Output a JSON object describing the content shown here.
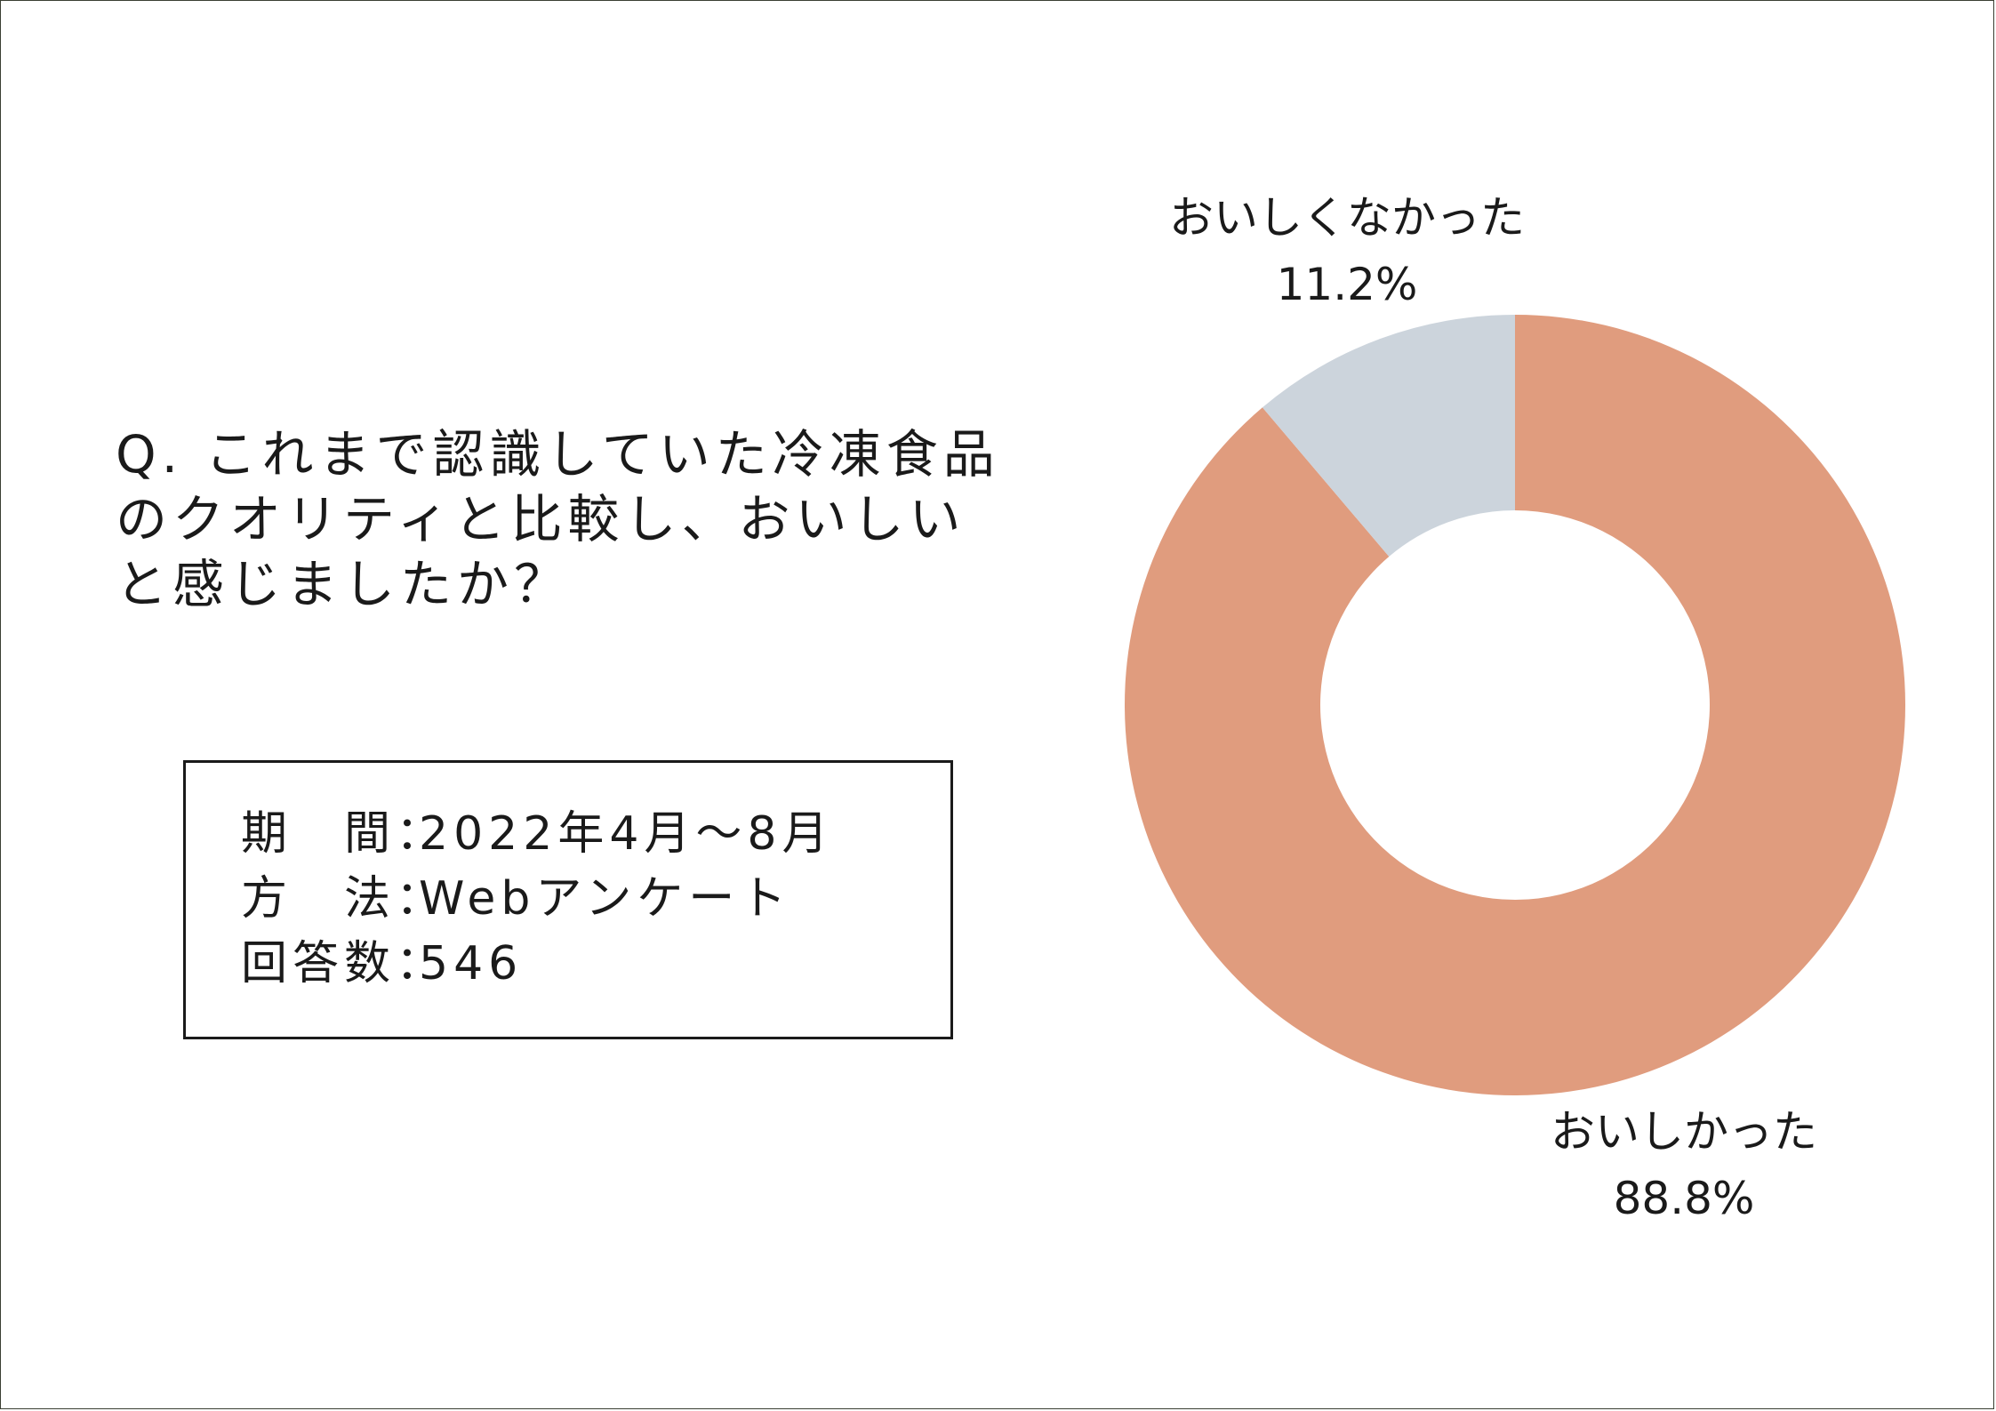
{
  "question": {
    "text": "Q. これまで認識していた冷凍食品\nのクオリティと比較し、おいしい\nと感じましたか？"
  },
  "info": {
    "rows": [
      {
        "label": "期　間：",
        "value": "2022年4月〜8月"
      },
      {
        "label": "方　法：",
        "value": "Webアンケート"
      },
      {
        "label": "回答数：",
        "value": "546"
      }
    ]
  },
  "chart_data": {
    "type": "pie",
    "donut": true,
    "categories": [
      "おいしかった",
      "おいしくなかった"
    ],
    "values": [
      88.8,
      11.2
    ],
    "value_labels": [
      "88.8%",
      "11.2%"
    ],
    "colors": [
      "#e09c7e",
      "#ccd4dc"
    ],
    "start": "12 o'clock",
    "direction": "clockwise",
    "title": "",
    "legend": "none"
  }
}
